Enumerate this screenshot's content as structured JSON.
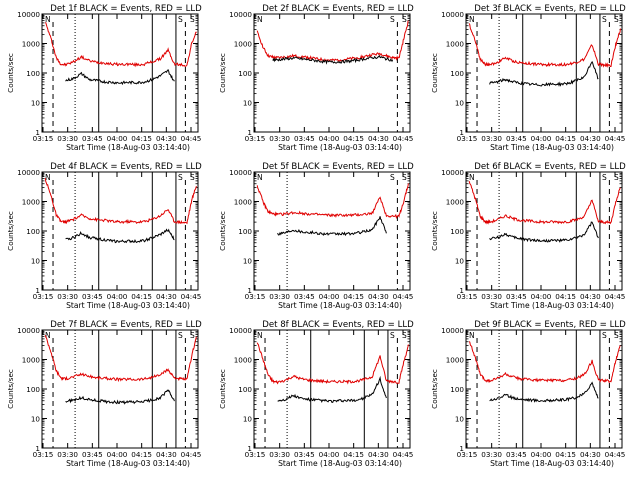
{
  "figure": {
    "xlabel": "Start Time (18-Aug-03 03:14:40)",
    "ylabel": "Counts/sec",
    "xtick_labels": [
      "03:15",
      "03:30",
      "03:45",
      "04:00",
      "04:15",
      "04:30",
      "04:45"
    ],
    "ytick_labels": [
      "1",
      "10",
      "100",
      "1000",
      "10000"
    ],
    "colors": {
      "events": "#000000",
      "lld": "#e00000",
      "axes": "#000000"
    }
  },
  "chart_data": [
    {
      "type": "line",
      "title": "Det 1f BLACK = Events, RED = LLD",
      "ylim": [
        1,
        10000
      ],
      "yscale": "log",
      "xlim": [
        0,
        99
      ],
      "x": [
        2,
        6,
        9,
        12,
        15,
        20,
        25,
        30,
        35,
        40,
        45,
        50,
        55,
        60,
        65,
        70,
        75,
        80,
        84,
        88,
        92,
        95,
        98
      ],
      "series": [
        {
          "name": "LLD",
          "values": [
            5500,
            1300,
            330,
            200,
            190,
            240,
            350,
            260,
            230,
            220,
            200,
            195,
            200,
            190,
            200,
            240,
            300,
            600,
            200,
            190,
            180,
            1000,
            2500
          ]
        },
        {
          "name": "Events",
          "values": [
            null,
            null,
            null,
            null,
            55,
            65,
            95,
            60,
            55,
            50,
            48,
            46,
            48,
            47,
            50,
            60,
            80,
            120,
            50,
            null,
            null,
            null,
            null
          ]
        }
      ],
      "dashed_x": [
        7,
        91
      ],
      "dotted_x": [
        21
      ],
      "solid_x": [
        36,
        70,
        85
      ],
      "markers": [
        "N",
        "S",
        "S"
      ]
    },
    {
      "type": "line",
      "title": "Det 2f BLACK = Events, RED = LLD",
      "ylim": [
        1,
        10000
      ],
      "yscale": "log",
      "xlim": [
        0,
        99
      ],
      "x": [
        2,
        6,
        9,
        12,
        15,
        20,
        25,
        30,
        35,
        40,
        45,
        50,
        55,
        60,
        65,
        70,
        75,
        80,
        84,
        88,
        92,
        95,
        98
      ],
      "series": [
        {
          "name": "LLD",
          "values": [
            2500,
            700,
            380,
            340,
            330,
            350,
            380,
            360,
            330,
            300,
            280,
            270,
            280,
            300,
            320,
            360,
            420,
            450,
            380,
            330,
            320,
            1400,
            6000
          ]
        },
        {
          "name": "Events",
          "values": [
            null,
            null,
            null,
            280,
            280,
            300,
            320,
            300,
            280,
            260,
            240,
            235,
            240,
            250,
            270,
            300,
            330,
            350,
            300,
            270,
            null,
            null,
            null
          ]
        }
      ],
      "dashed_x": [
        91
      ],
      "dotted_x": [],
      "solid_x": [],
      "markers": [
        "N",
        "S",
        "S"
      ]
    },
    {
      "type": "line",
      "title": "Det 3f BLACK = Events, RED = LLD",
      "ylim": [
        1,
        10000
      ],
      "yscale": "log",
      "xlim": [
        0,
        99
      ],
      "x": [
        2,
        6,
        9,
        12,
        15,
        20,
        25,
        30,
        35,
        40,
        45,
        50,
        55,
        60,
        65,
        70,
        75,
        80,
        84,
        88,
        92,
        95,
        98
      ],
      "series": [
        {
          "name": "LLD",
          "values": [
            4500,
            1200,
            300,
            200,
            190,
            230,
            330,
            250,
            220,
            210,
            200,
            190,
            195,
            190,
            200,
            230,
            290,
            900,
            200,
            185,
            180,
            900,
            3000
          ]
        },
        {
          "name": "Events",
          "values": [
            null,
            null,
            null,
            null,
            45,
            50,
            60,
            50,
            45,
            42,
            40,
            40,
            42,
            42,
            45,
            55,
            70,
            250,
            60,
            null,
            null,
            null,
            null
          ]
        }
      ],
      "dashed_x": [
        7,
        91
      ],
      "dotted_x": [
        21
      ],
      "solid_x": [
        36,
        70,
        85
      ],
      "markers": [
        "N",
        "S",
        "S"
      ]
    },
    {
      "type": "line",
      "title": "Det 4f BLACK = Events, RED = LLD",
      "ylim": [
        1,
        10000
      ],
      "yscale": "log",
      "xlim": [
        0,
        99
      ],
      "x": [
        2,
        6,
        9,
        12,
        15,
        20,
        25,
        30,
        35,
        40,
        45,
        50,
        55,
        60,
        65,
        70,
        75,
        80,
        84,
        88,
        92,
        95,
        98
      ],
      "series": [
        {
          "name": "LLD",
          "values": [
            6000,
            1400,
            350,
            210,
            200,
            250,
            340,
            270,
            240,
            230,
            210,
            200,
            210,
            200,
            210,
            250,
            330,
            550,
            210,
            200,
            190,
            1100,
            3500
          ]
        },
        {
          "name": "Events",
          "values": [
            null,
            null,
            null,
            null,
            50,
            60,
            85,
            60,
            55,
            50,
            45,
            44,
            45,
            45,
            48,
            58,
            75,
            110,
            50,
            null,
            null,
            null,
            null
          ]
        }
      ],
      "dashed_x": [
        7,
        91
      ],
      "dotted_x": [
        21
      ],
      "solid_x": [
        36,
        70,
        85
      ],
      "markers": [
        "N",
        "S",
        "S"
      ]
    },
    {
      "type": "line",
      "title": "Det 5f BLACK = Events, RED = LLD",
      "ylim": [
        1,
        10000
      ],
      "yscale": "log",
      "xlim": [
        0,
        99
      ],
      "x": [
        2,
        6,
        9,
        12,
        15,
        20,
        25,
        30,
        35,
        40,
        45,
        50,
        55,
        60,
        65,
        70,
        75,
        80,
        84,
        88,
        92,
        95,
        98
      ],
      "series": [
        {
          "name": "LLD",
          "values": [
            3500,
            900,
            450,
            380,
            360,
            380,
            420,
            400,
            380,
            360,
            350,
            340,
            345,
            340,
            350,
            370,
            400,
            1400,
            330,
            320,
            310,
            1000,
            4000
          ]
        },
        {
          "name": "Events",
          "values": [
            null,
            null,
            null,
            null,
            80,
            90,
            110,
            95,
            90,
            85,
            80,
            78,
            80,
            80,
            85,
            95,
            110,
            300,
            90,
            null,
            null,
            null,
            null
          ]
        }
      ],
      "dashed_x": [
        91
      ],
      "dotted_x": [
        21
      ],
      "solid_x": [],
      "markers": [
        "N",
        "S",
        "S"
      ]
    },
    {
      "type": "line",
      "title": "Det 6f BLACK = Events, RED = LLD",
      "ylim": [
        1,
        10000
      ],
      "yscale": "log",
      "xlim": [
        0,
        99
      ],
      "x": [
        2,
        6,
        9,
        12,
        15,
        20,
        25,
        30,
        35,
        40,
        45,
        50,
        55,
        60,
        65,
        70,
        75,
        80,
        84,
        88,
        92,
        95,
        98
      ],
      "series": [
        {
          "name": "LLD",
          "values": [
            5000,
            1200,
            320,
            210,
            200,
            240,
            330,
            260,
            230,
            220,
            205,
            200,
            205,
            200,
            210,
            240,
            310,
            1100,
            210,
            200,
            190,
            950,
            3200
          ]
        },
        {
          "name": "Events",
          "values": [
            null,
            null,
            null,
            null,
            55,
            60,
            80,
            60,
            55,
            50,
            48,
            46,
            48,
            47,
            50,
            58,
            75,
            200,
            55,
            null,
            null,
            null,
            null
          ]
        }
      ],
      "dashed_x": [
        7,
        91
      ],
      "dotted_x": [
        21
      ],
      "solid_x": [
        36,
        70,
        85
      ],
      "markers": [
        "N",
        "S",
        "S"
      ]
    },
    {
      "type": "line",
      "title": "Det 7f BLACK = Events, RED = LLD",
      "ylim": [
        1,
        10000
      ],
      "yscale": "log",
      "xlim": [
        0,
        99
      ],
      "x": [
        2,
        6,
        9,
        12,
        15,
        20,
        25,
        30,
        35,
        40,
        45,
        50,
        55,
        60,
        65,
        70,
        75,
        80,
        84,
        88,
        92,
        95,
        98
      ],
      "series": [
        {
          "name": "LLD",
          "values": [
            7000,
            1600,
            420,
            240,
            220,
            260,
            320,
            270,
            240,
            230,
            220,
            210,
            215,
            210,
            220,
            250,
            300,
            450,
            240,
            220,
            210,
            1300,
            6000
          ]
        },
        {
          "name": "Events",
          "values": [
            null,
            null,
            null,
            null,
            38,
            42,
            50,
            44,
            40,
            38,
            36,
            35,
            36,
            36,
            38,
            42,
            50,
            90,
            40,
            null,
            null,
            null,
            null
          ]
        }
      ],
      "dashed_x": [
        7,
        91
      ],
      "dotted_x": [
        21
      ],
      "solid_x": [
        36,
        70,
        85
      ],
      "markers": [
        "N",
        "S",
        "S"
      ]
    },
    {
      "type": "line",
      "title": "Det 8f BLACK = Events, RED = LLD",
      "ylim": [
        1,
        10000
      ],
      "yscale": "log",
      "xlim": [
        0,
        99
      ],
      "x": [
        2,
        6,
        9,
        12,
        15,
        20,
        25,
        30,
        35,
        40,
        45,
        50,
        55,
        60,
        65,
        70,
        75,
        80,
        84,
        88,
        92,
        95,
        98
      ],
      "series": [
        {
          "name": "LLD",
          "values": [
            4000,
            900,
            300,
            180,
            170,
            200,
            270,
            220,
            200,
            190,
            180,
            175,
            180,
            175,
            185,
            210,
            260,
            1300,
            190,
            180,
            170,
            800,
            3000
          ]
        },
        {
          "name": "Events",
          "values": [
            null,
            null,
            null,
            null,
            40,
            45,
            60,
            48,
            44,
            42,
            40,
            38,
            40,
            40,
            42,
            50,
            65,
            220,
            45,
            null,
            null,
            null,
            null
          ]
        }
      ],
      "dashed_x": [
        7,
        91
      ],
      "dotted_x": [
        21
      ],
      "solid_x": [
        36,
        70,
        85
      ],
      "markers": [
        "N",
        "S",
        "S"
      ]
    },
    {
      "type": "line",
      "title": "Det 9f BLACK = Events, RED = LLD",
      "ylim": [
        1,
        10000
      ],
      "yscale": "log",
      "xlim": [
        0,
        99
      ],
      "x": [
        2,
        6,
        9,
        12,
        15,
        20,
        25,
        30,
        35,
        40,
        45,
        50,
        55,
        60,
        65,
        70,
        75,
        80,
        84,
        88,
        92,
        95,
        98
      ],
      "series": [
        {
          "name": "LLD",
          "values": [
            4500,
            1100,
            320,
            200,
            190,
            230,
            320,
            250,
            220,
            210,
            200,
            195,
            200,
            195,
            205,
            235,
            300,
            900,
            200,
            190,
            185,
            900,
            3000
          ]
        },
        {
          "name": "Events",
          "values": [
            null,
            null,
            null,
            null,
            42,
            48,
            62,
            50,
            45,
            43,
            41,
            40,
            42,
            42,
            45,
            52,
            68,
            160,
            48,
            null,
            null,
            null,
            null
          ]
        }
      ],
      "dashed_x": [
        7,
        91
      ],
      "dotted_x": [
        21
      ],
      "solid_x": [
        36,
        70,
        85
      ],
      "markers": [
        "N",
        "S",
        "S"
      ]
    }
  ]
}
